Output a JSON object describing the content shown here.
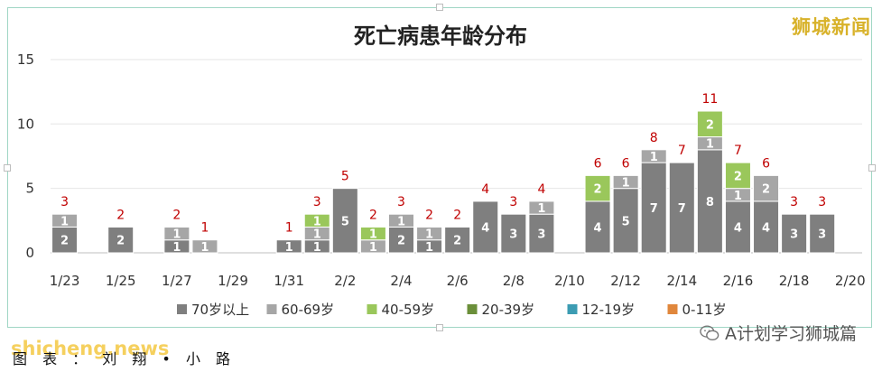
{
  "watermark": "狮城新闻",
  "source_label": "图 表 ：  刘 翔 • 小 路",
  "site_watermark": "shicheng.news",
  "brand_label": "A计划学习狮城篇",
  "colors": {
    "c70": "#7f7f7f",
    "c60": "#a6a6a6",
    "c40": "#9ac75b",
    "c20": "#6b8f3a",
    "c12": "#3c9cb3",
    "c0": "#e0873c",
    "total_label": "#c00000",
    "frame": "#9fd6c4"
  },
  "chart_data": {
    "type": "bar",
    "stacked": true,
    "title": "死亡病患年龄分布",
    "ylim": [
      0,
      15
    ],
    "yticks": [
      "0",
      "5",
      "10",
      "15"
    ],
    "grid": true,
    "legend_position": "bottom",
    "x_tick_labels": [
      "1/23",
      "1/25",
      "1/27",
      "1/29",
      "1/31",
      "2/2",
      "2/4",
      "2/6",
      "2/8",
      "2/10",
      "2/12",
      "2/14",
      "2/16",
      "2/18",
      "2/20"
    ],
    "categories": [
      "1/23",
      "1/24",
      "1/25",
      "1/26",
      "1/27",
      "1/28",
      "1/29",
      "1/30",
      "1/31",
      "2/1",
      "2/2",
      "2/3",
      "2/4",
      "2/5",
      "2/6",
      "2/7",
      "2/8",
      "2/9",
      "2/10",
      "2/11",
      "2/12",
      "2/13",
      "2/14",
      "2/15",
      "2/16",
      "2/17",
      "2/18",
      "2/19",
      "2/20"
    ],
    "series": [
      {
        "name": "70岁以上",
        "color_key": "c70",
        "values": [
          2,
          0,
          2,
          0,
          1,
          0,
          0,
          0,
          1,
          1,
          5,
          0,
          2,
          1,
          2,
          4,
          3,
          3,
          0,
          4,
          5,
          7,
          7,
          8,
          4,
          4,
          3,
          3,
          0
        ]
      },
      {
        "name": "60-69岁",
        "color_key": "c60",
        "values": [
          1,
          0,
          0,
          0,
          1,
          1,
          0,
          0,
          0,
          1,
          0,
          1,
          1,
          1,
          0,
          0,
          0,
          1,
          0,
          0,
          1,
          1,
          0,
          1,
          1,
          2,
          0,
          0,
          0
        ]
      },
      {
        "name": "40-59岁",
        "color_key": "c40",
        "values": [
          0,
          0,
          0,
          0,
          0,
          0,
          0,
          0,
          0,
          1,
          0,
          1,
          0,
          0,
          0,
          0,
          0,
          0,
          0,
          2,
          0,
          0,
          0,
          2,
          2,
          0,
          0,
          0,
          0
        ]
      },
      {
        "name": "20-39岁",
        "color_key": "c20",
        "values": [
          0,
          0,
          0,
          0,
          0,
          0,
          0,
          0,
          0,
          0,
          0,
          0,
          0,
          0,
          0,
          0,
          0,
          0,
          0,
          0,
          0,
          0,
          0,
          0,
          0,
          0,
          0,
          0,
          0
        ]
      },
      {
        "name": "12-19岁",
        "color_key": "c12",
        "values": [
          0,
          0,
          0,
          0,
          0,
          0,
          0,
          0,
          0,
          0,
          0,
          0,
          0,
          0,
          0,
          0,
          0,
          0,
          0,
          0,
          0,
          0,
          0,
          0,
          0,
          0,
          0,
          0,
          0
        ]
      },
      {
        "name": "0-11岁",
        "color_key": "c0",
        "values": [
          0,
          0,
          0,
          0,
          0,
          0,
          0,
          0,
          0,
          0,
          0,
          0,
          0,
          0,
          0,
          0,
          0,
          0,
          0,
          0,
          0,
          0,
          0,
          0,
          0,
          0,
          0,
          0,
          0
        ]
      }
    ],
    "totals": [
      3,
      0,
      2,
      0,
      2,
      1,
      0,
      0,
      1,
      3,
      5,
      2,
      3,
      2,
      2,
      4,
      3,
      4,
      0,
      6,
      6,
      8,
      7,
      11,
      7,
      6,
      3,
      3,
      0
    ]
  }
}
